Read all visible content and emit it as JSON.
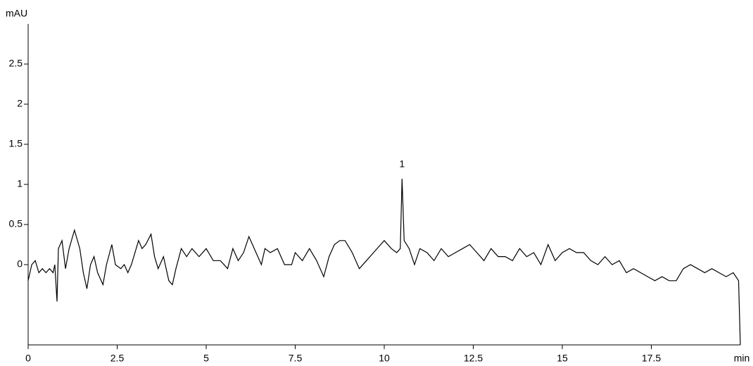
{
  "chart_data": {
    "type": "line",
    "xlabel": "min",
    "ylabel": "mAU",
    "xlim": [
      0,
      20
    ],
    "ylim": [
      -1,
      3
    ],
    "xticks": [
      0,
      2.5,
      5,
      7.5,
      10,
      12.5,
      15,
      17.5
    ],
    "yticks": [
      0,
      0.5,
      1,
      1.5,
      2,
      2.5
    ],
    "annotations": [
      {
        "label": "1",
        "x": 10.5,
        "y": 1.07
      }
    ],
    "series": [
      {
        "color": "#000000",
        "x": [
          0,
          0.1,
          0.2,
          0.3,
          0.4,
          0.5,
          0.6,
          0.7,
          0.75,
          0.81,
          0.85,
          0.95,
          1.05,
          1.15,
          1.3,
          1.45,
          1.55,
          1.65,
          1.75,
          1.85,
          1.95,
          2.1,
          2.2,
          2.35,
          2.45,
          2.6,
          2.7,
          2.8,
          2.9,
          3.0,
          3.1,
          3.2,
          3.3,
          3.45,
          3.55,
          3.65,
          3.8,
          3.95,
          4.05,
          4.15,
          4.3,
          4.45,
          4.6,
          4.8,
          5.0,
          5.2,
          5.4,
          5.6,
          5.75,
          5.9,
          6.05,
          6.2,
          6.4,
          6.55,
          6.65,
          6.8,
          7.0,
          7.2,
          7.4,
          7.5,
          7.7,
          7.9,
          8.1,
          8.3,
          8.45,
          8.6,
          8.75,
          8.9,
          9.1,
          9.3,
          9.5,
          9.7,
          9.9,
          10.0,
          10.2,
          10.35,
          10.45,
          10.5,
          10.56,
          10.7,
          10.85,
          11.0,
          11.2,
          11.4,
          11.6,
          11.8,
          12.0,
          12.2,
          12.4,
          12.6,
          12.8,
          13.0,
          13.2,
          13.4,
          13.6,
          13.8,
          14.0,
          14.2,
          14.4,
          14.6,
          14.8,
          15.0,
          15.2,
          15.4,
          15.6,
          15.8,
          16.0,
          16.2,
          16.4,
          16.6,
          16.8,
          17.0,
          17.2,
          17.4,
          17.6,
          17.8,
          18.0,
          18.2,
          18.4,
          18.6,
          18.8,
          19.0,
          19.2,
          19.4,
          19.6,
          19.8,
          19.95,
          20.0
        ],
        "values": [
          -0.2,
          0.0,
          0.05,
          -0.1,
          -0.05,
          -0.1,
          -0.05,
          -0.1,
          0.0,
          -0.46,
          0.2,
          0.3,
          -0.05,
          0.2,
          0.43,
          0.2,
          -0.1,
          -0.3,
          0.0,
          0.1,
          -0.1,
          -0.25,
          0.0,
          0.25,
          0.0,
          -0.05,
          0.0,
          -0.1,
          0.0,
          0.15,
          0.3,
          0.2,
          0.25,
          0.38,
          0.1,
          -0.05,
          0.1,
          -0.2,
          -0.25,
          -0.05,
          0.2,
          0.1,
          0.2,
          0.1,
          0.2,
          0.05,
          0.05,
          -0.05,
          0.2,
          0.05,
          0.15,
          0.35,
          0.15,
          0.0,
          0.2,
          0.15,
          0.2,
          0.0,
          0.0,
          0.15,
          0.05,
          0.2,
          0.05,
          -0.15,
          0.1,
          0.25,
          0.3,
          0.3,
          0.15,
          -0.05,
          0.05,
          0.15,
          0.25,
          0.3,
          0.2,
          0.15,
          0.2,
          1.07,
          0.3,
          0.2,
          0.0,
          0.2,
          0.15,
          0.05,
          0.2,
          0.1,
          0.15,
          0.2,
          0.25,
          0.15,
          0.05,
          0.2,
          0.1,
          0.1,
          0.05,
          0.2,
          0.1,
          0.15,
          0.0,
          0.25,
          0.05,
          0.15,
          0.2,
          0.15,
          0.15,
          0.05,
          0.0,
          0.1,
          0.0,
          0.05,
          -0.1,
          -0.05,
          -0.1,
          -0.15,
          -0.2,
          -0.15,
          -0.2,
          -0.2,
          -0.05,
          0.0,
          -0.05,
          -0.1,
          -0.05,
          -0.1,
          -0.15,
          -0.1,
          -0.2,
          -1
        ]
      }
    ]
  }
}
